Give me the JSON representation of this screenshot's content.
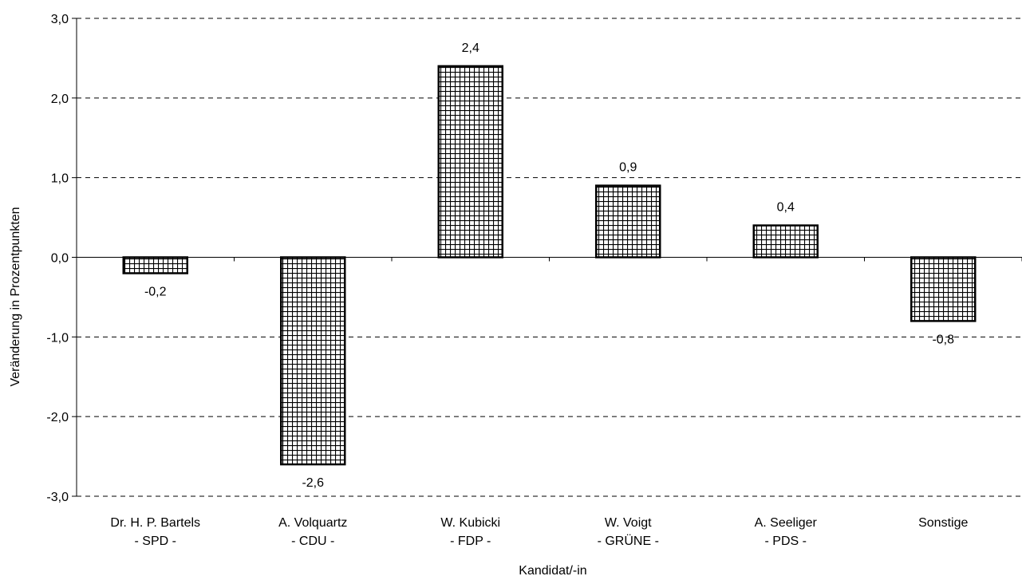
{
  "chart_data": {
    "type": "bar",
    "title": "",
    "xlabel": "Kandidat/-in",
    "ylabel": "Veränderung in Prozentpunkten",
    "ylim": [
      -3.0,
      3.0
    ],
    "yticks": [
      3.0,
      2.0,
      1.0,
      0.0,
      -1.0,
      -2.0,
      -3.0
    ],
    "ytick_labels": [
      "3,0",
      "2,0",
      "1,0",
      "0,0",
      "-1,0",
      "-2,0",
      "-3,0"
    ],
    "grid": "horizontal dashed",
    "legend": "none",
    "categories": [
      {
        "name": "Dr. H. P. Bartels",
        "party": "- SPD -"
      },
      {
        "name": "A. Volquartz",
        "party": "- CDU -"
      },
      {
        "name": "W. Kubicki",
        "party": "- FDP -"
      },
      {
        "name": "W. Voigt",
        "party": "- GRÜNE -"
      },
      {
        "name": "A. Seeliger",
        "party": "- PDS -"
      },
      {
        "name": "Sonstige",
        "party": ""
      }
    ],
    "values": [
      -0.2,
      -2.6,
      2.4,
      0.9,
      0.4,
      -0.8
    ],
    "value_labels": [
      "-0,2",
      "-2,6",
      "2,4",
      "0,9",
      "0,4",
      "-0,8"
    ],
    "bar_pattern": "grid-hatch",
    "colors": {
      "bar_fill": "#ffffff",
      "bar_stroke": "#000000",
      "grid": "#000000"
    }
  }
}
